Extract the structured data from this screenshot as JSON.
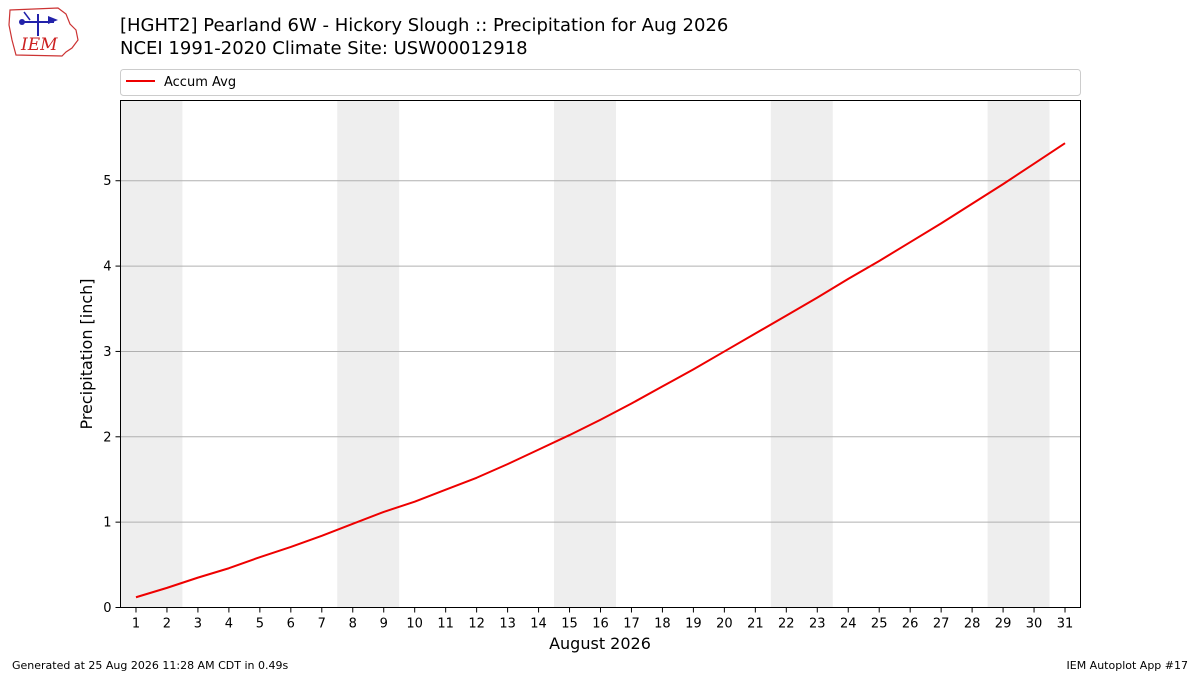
{
  "logo": {
    "text": "IEM",
    "color": "#cc2222"
  },
  "header": {
    "title_line1": "[HGHT2] Pearland 6W - Hickory Slough :: Precipitation for Aug 2026",
    "title_line2": "NCEI 1991-2020 Climate Site: USW00012918"
  },
  "footer": {
    "generated": "Generated at 25 Aug 2026 11:28 AM CDT in 0.49s",
    "app": "IEM Autoplot App #17"
  },
  "colors": {
    "line": "#ee0000",
    "weekend_band": "#eeeeee",
    "grid": "#b0b0b0"
  },
  "chart_data": {
    "type": "line",
    "xlabel": "August 2026",
    "ylabel": "Precipitation [inch]",
    "x": [
      1,
      2,
      3,
      4,
      5,
      6,
      7,
      8,
      9,
      10,
      11,
      12,
      13,
      14,
      15,
      16,
      17,
      18,
      19,
      20,
      21,
      22,
      23,
      24,
      25,
      26,
      27,
      28,
      29,
      30,
      31
    ],
    "series": [
      {
        "name": "Accum Avg",
        "color": "#ee0000",
        "values": [
          0.12,
          0.23,
          0.35,
          0.46,
          0.59,
          0.71,
          0.84,
          0.98,
          1.12,
          1.24,
          1.38,
          1.52,
          1.68,
          1.85,
          2.02,
          2.2,
          2.39,
          2.59,
          2.79,
          3.0,
          3.21,
          3.42,
          3.63,
          3.85,
          4.06,
          4.28,
          4.5,
          4.73,
          4.96,
          5.2,
          5.44
        ]
      }
    ],
    "weekend_bands": [
      [
        1,
        2
      ],
      [
        8,
        9
      ],
      [
        15,
        16
      ],
      [
        22,
        23
      ],
      [
        29,
        30
      ]
    ],
    "xlim": [
      0.5,
      31.5
    ],
    "ylim": [
      0,
      5.94
    ],
    "yticks": [
      0,
      1,
      2,
      3,
      4,
      5
    ],
    "grid": "horizontal",
    "legend": "top-left"
  }
}
